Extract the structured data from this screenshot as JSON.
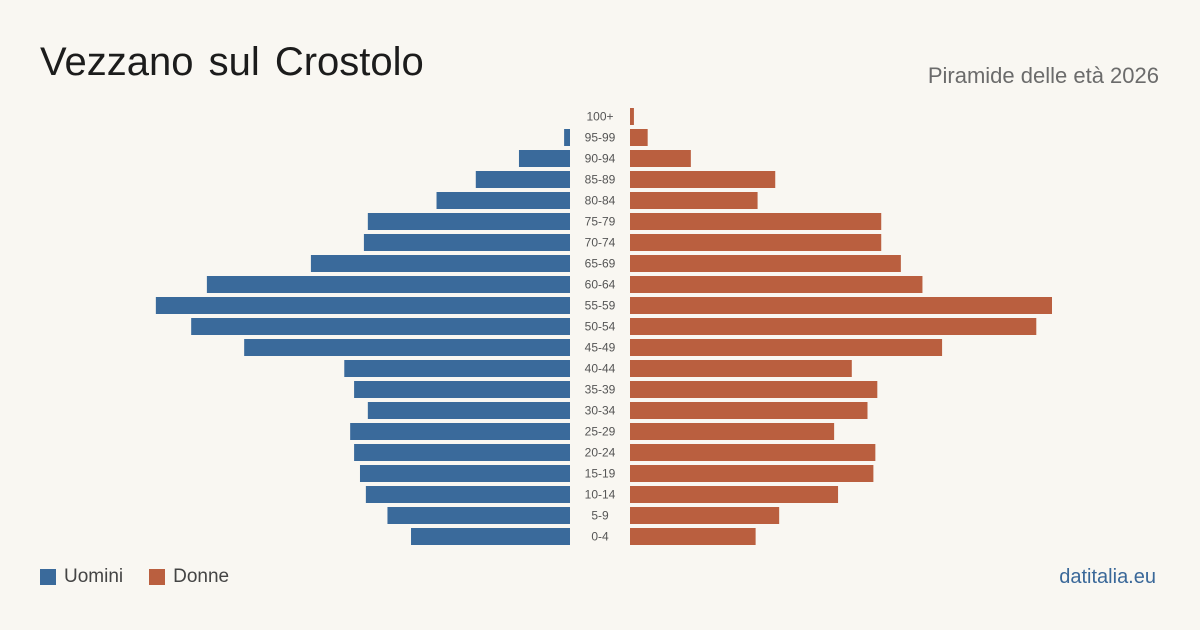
{
  "header": {
    "title": "Vezzano sul Crostolo",
    "subtitle": "Piramide delle età 2026"
  },
  "legend": {
    "men_label": "Uomini",
    "women_label": "Donne"
  },
  "footer": {
    "brand": "datitalia.eu"
  },
  "colors": {
    "men": "#3a6a9b",
    "women": "#ba5f3f",
    "background": "#f9f7f2"
  },
  "chart_data": {
    "type": "bar",
    "orientation": "horizontal-pyramid",
    "title": "Vezzano sul Crostolo",
    "subtitle": "Piramide delle età 2026",
    "categories": [
      "100+",
      "95-99",
      "90-94",
      "85-89",
      "80-84",
      "75-79",
      "70-74",
      "65-69",
      "60-64",
      "55-59",
      "50-54",
      "45-49",
      "40-44",
      "35-39",
      "30-34",
      "25-29",
      "20-24",
      "15-19",
      "10-14",
      "5-9",
      "0-4"
    ],
    "series": [
      {
        "name": "Uomini",
        "color": "#3a6a9b",
        "values": [
          0,
          3,
          26,
          48,
          68,
          103,
          105,
          132,
          185,
          211,
          193,
          166,
          115,
          110,
          103,
          112,
          110,
          107,
          104,
          93,
          81
        ]
      },
      {
        "name": "Donne",
        "color": "#ba5f3f",
        "values": [
          2,
          9,
          31,
          74,
          65,
          128,
          128,
          138,
          149,
          215,
          207,
          159,
          113,
          126,
          121,
          104,
          125,
          124,
          106,
          76,
          64
        ]
      }
    ],
    "xlim": [
      0,
      215
    ],
    "grid": false,
    "legend_position": "bottom-left"
  }
}
